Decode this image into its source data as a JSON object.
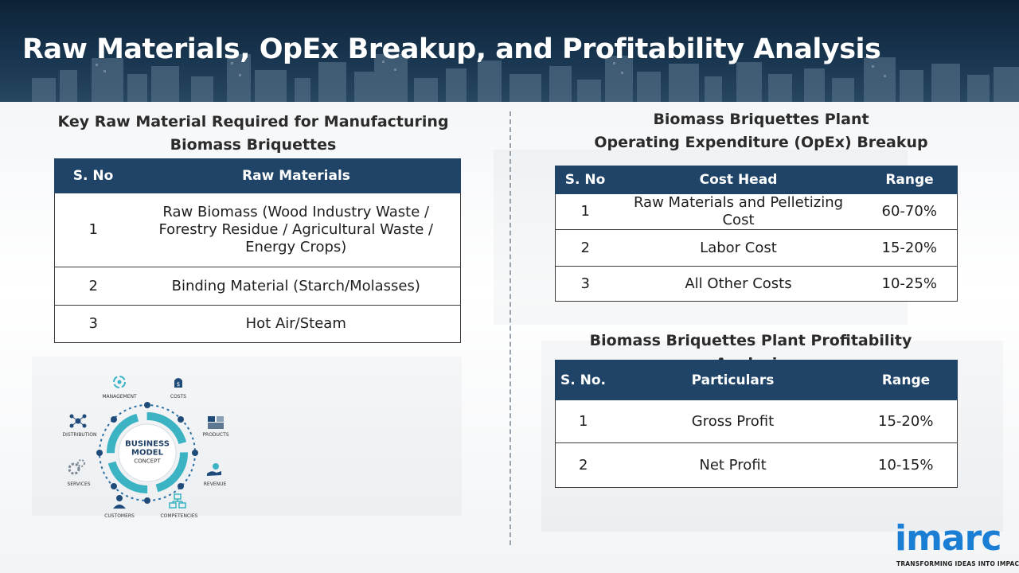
{
  "header": {
    "title": "Raw Materials, OpEx Breakup, and Profitability Analysis"
  },
  "raw_materials": {
    "title_line1": "Key Raw Material Required for Manufacturing",
    "title_line2": "Biomass Briquettes",
    "columns": [
      "S. No",
      "Raw Materials"
    ],
    "rows": [
      {
        "sno": "1",
        "line1": "Raw Biomass (Wood Industry Waste /",
        "line2": "Forestry Residue / Agricultural Waste /",
        "line3": "Energy Crops)"
      },
      {
        "sno": "2",
        "name": "Binding Material (Starch/Molasses)"
      },
      {
        "sno": "3",
        "name": "Hot Air/Steam"
      }
    ]
  },
  "opex": {
    "title_line1": "Biomass Briquettes Plant",
    "title_line2": "Operating Expenditure (OpEx) Breakup",
    "columns": [
      "S. No",
      "Cost Head",
      "Range"
    ],
    "rows": [
      {
        "sno": "1",
        "line1": "Raw Materials and Pelletizing",
        "line2": "Cost",
        "range": "60-70%"
      },
      {
        "sno": "2",
        "head": "Labor Cost",
        "range": "15-20%"
      },
      {
        "sno": "3",
        "head": "All Other Costs",
        "range": "10-25%"
      }
    ]
  },
  "profitability": {
    "title": "Biomass Briquettes Plant Profitability Analysis",
    "columns": [
      "S. No.",
      "Particulars",
      "Range"
    ],
    "rows": [
      {
        "sno": "1",
        "name": "Gross Profit",
        "range": "15-20%"
      },
      {
        "sno": "2",
        "name": "Net Profit",
        "range": "10-15%"
      }
    ]
  },
  "business_model": {
    "center_line1": "BUSINESS",
    "center_line2": "MODEL",
    "center_line3": "CONCEPT",
    "labels": {
      "management": "MANAGEMENT",
      "costs": "COSTS",
      "products": "PRODUCTS",
      "revenue": "REVENUE",
      "competencies": "COMPETENCIES",
      "customers": "CUSTOMERS",
      "services": "SERVICES",
      "distribution": "DISTRIBUTION"
    }
  },
  "logo": {
    "word": "imarc",
    "tagline": "TRANSFORMING IDEAS INTO IMPACT"
  },
  "colors": {
    "header_bg": "#18354f",
    "table_header": "#1f4468",
    "logo_blue": "#1a7fd4"
  }
}
